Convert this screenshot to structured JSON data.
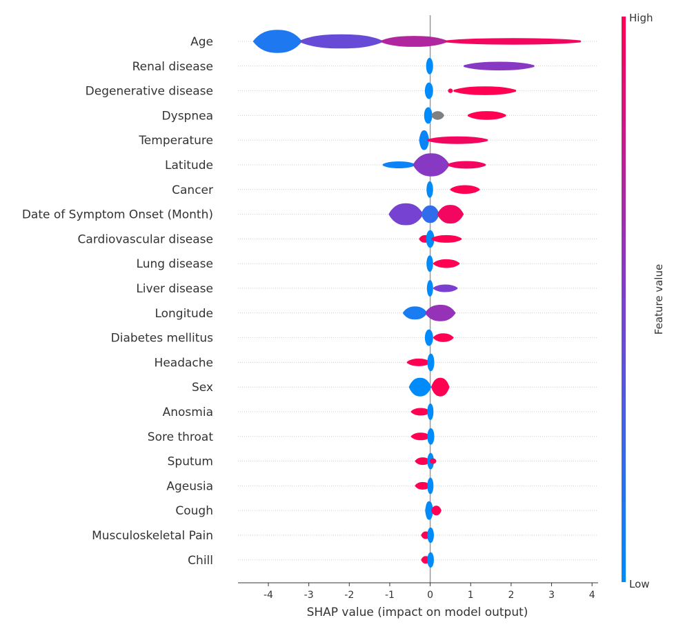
{
  "chart_data": {
    "type": "scatter",
    "subtype": "shap_beeswarm_summary",
    "title": "",
    "xlabel": "SHAP value (impact on model output)",
    "ylabel": "",
    "xlim": [
      -4.75,
      4.15
    ],
    "xticks": [
      -4,
      -3,
      -2,
      -1,
      0,
      1,
      2,
      3,
      4
    ],
    "xtick_labels": [
      "-4",
      "-3",
      "-2",
      "-1",
      "0",
      "1",
      "2",
      "3",
      "4"
    ],
    "zero_line": true,
    "colorbar": {
      "label": "Feature value",
      "high_label": "High",
      "low_label": "Low",
      "low_color": "#008bfb",
      "mid_color": "#7b3fd0",
      "high_color": "#ff0052"
    },
    "missing_value_color": "#808080",
    "features": [
      {
        "name": "Age",
        "segments": [
          {
            "from": -4.35,
            "to": -3.2,
            "h": 0.95,
            "color": 0.12
          },
          {
            "from": -3.2,
            "to": -1.2,
            "h": 0.55,
            "color": 0.42
          },
          {
            "from": -1.2,
            "to": 0.4,
            "h": 0.4,
            "color": 0.7
          },
          {
            "from": 0.4,
            "to": 3.7,
            "h": 0.2,
            "color": 0.95
          }
        ]
      },
      {
        "name": "Renal disease",
        "segments": [
          {
            "from": -0.05,
            "to": 0.02,
            "h": 0.75,
            "color": 0.0
          },
          {
            "from": 0.85,
            "to": 2.55,
            "h": 0.3,
            "color": 0.55
          }
        ]
      },
      {
        "name": "Degenerative disease",
        "segments": [
          {
            "from": -0.08,
            "to": 0.02,
            "h": 0.75,
            "color": 0.0
          },
          {
            "from": 0.5,
            "to": 0.5,
            "h": 0.2,
            "color": 1.0
          },
          {
            "from": 0.6,
            "to": 2.1,
            "h": 0.3,
            "color": 1.0
          }
        ]
      },
      {
        "name": "Dyspnea",
        "segments": [
          {
            "from": -0.1,
            "to": 0.0,
            "h": 0.75,
            "color": 0.0
          },
          {
            "from": 0.05,
            "to": 0.32,
            "h": 0.3,
            "color": "nan"
          },
          {
            "from": 0.95,
            "to": 1.85,
            "h": 0.3,
            "color": 1.0
          }
        ]
      },
      {
        "name": "Temperature",
        "segments": [
          {
            "from": -0.25,
            "to": -0.05,
            "h": 0.8,
            "color": 0.05
          },
          {
            "from": -0.05,
            "to": 1.4,
            "h": 0.25,
            "color": 0.95
          }
        ]
      },
      {
        "name": "Latitude",
        "segments": [
          {
            "from": -1.15,
            "to": -0.4,
            "h": 0.22,
            "color": 0.05
          },
          {
            "from": -0.4,
            "to": 0.45,
            "h": 0.95,
            "color": 0.55
          },
          {
            "from": 0.45,
            "to": 1.35,
            "h": 0.25,
            "color": 0.95
          }
        ]
      },
      {
        "name": "Cancer",
        "segments": [
          {
            "from": -0.04,
            "to": 0.02,
            "h": 0.75,
            "color": 0.0
          },
          {
            "from": 0.52,
            "to": 1.2,
            "h": 0.3,
            "color": 1.0
          }
        ]
      },
      {
        "name": "Date of Symptom Onset (Month)",
        "segments": [
          {
            "from": -1.0,
            "to": -0.2,
            "h": 0.9,
            "color": 0.48
          },
          {
            "from": -0.2,
            "to": 0.2,
            "h": 0.7,
            "color": 0.2
          },
          {
            "from": 0.2,
            "to": 0.8,
            "h": 0.75,
            "color": 0.95
          }
        ]
      },
      {
        "name": "Cardiovascular disease",
        "segments": [
          {
            "from": -0.25,
            "to": 0.0,
            "h": 0.25,
            "color": 1.0
          },
          {
            "from": -0.05,
            "to": 0.05,
            "h": 0.8,
            "color": 0.0
          },
          {
            "from": 0.05,
            "to": 0.75,
            "h": 0.25,
            "color": 1.0
          }
        ]
      },
      {
        "name": "Lung disease",
        "segments": [
          {
            "from": -0.04,
            "to": 0.02,
            "h": 0.75,
            "color": 0.0
          },
          {
            "from": 0.1,
            "to": 0.7,
            "h": 0.3,
            "color": 1.0
          }
        ]
      },
      {
        "name": "Liver disease",
        "segments": [
          {
            "from": -0.03,
            "to": 0.02,
            "h": 0.75,
            "color": 0.0
          },
          {
            "from": 0.1,
            "to": 0.65,
            "h": 0.25,
            "color": 0.5
          }
        ]
      },
      {
        "name": "Longitude",
        "segments": [
          {
            "from": -0.65,
            "to": -0.1,
            "h": 0.5,
            "color": 0.1
          },
          {
            "from": -0.1,
            "to": 0.6,
            "h": 0.65,
            "color": 0.6
          }
        ]
      },
      {
        "name": "Diabetes mellitus",
        "segments": [
          {
            "from": -0.08,
            "to": 0.02,
            "h": 0.75,
            "color": 0.0
          },
          {
            "from": 0.1,
            "to": 0.55,
            "h": 0.3,
            "color": 1.0
          }
        ]
      },
      {
        "name": "Headache",
        "segments": [
          {
            "from": -0.55,
            "to": -0.02,
            "h": 0.25,
            "color": 1.0
          },
          {
            "from": -0.02,
            "to": 0.05,
            "h": 0.8,
            "color": 0.0
          }
        ]
      },
      {
        "name": "Sex",
        "segments": [
          {
            "from": -0.5,
            "to": 0.0,
            "h": 0.75,
            "color": 0.0
          },
          {
            "from": 0.05,
            "to": 0.45,
            "h": 0.75,
            "color": 1.0
          }
        ]
      },
      {
        "name": "Anosmia",
        "segments": [
          {
            "from": -0.45,
            "to": -0.02,
            "h": 0.25,
            "color": 1.0
          },
          {
            "from": -0.02,
            "to": 0.03,
            "h": 0.75,
            "color": 0.0
          }
        ]
      },
      {
        "name": "Sore throat",
        "segments": [
          {
            "from": -0.45,
            "to": -0.02,
            "h": 0.25,
            "color": 1.0
          },
          {
            "from": -0.02,
            "to": 0.05,
            "h": 0.75,
            "color": 0.0
          }
        ]
      },
      {
        "name": "Sputum",
        "segments": [
          {
            "from": -0.35,
            "to": -0.02,
            "h": 0.25,
            "color": 1.0
          },
          {
            "from": -0.02,
            "to": 0.04,
            "h": 0.75,
            "color": 0.0
          },
          {
            "from": 0.04,
            "to": 0.1,
            "h": 0.25,
            "color": 1.0
          }
        ]
      },
      {
        "name": "Ageusia",
        "segments": [
          {
            "from": -0.35,
            "to": -0.02,
            "h": 0.25,
            "color": 1.0
          },
          {
            "from": -0.02,
            "to": 0.03,
            "h": 0.75,
            "color": 0.0
          }
        ]
      },
      {
        "name": "Cough",
        "segments": [
          {
            "from": -0.1,
            "to": 0.05,
            "h": 0.75,
            "color": 0.0
          },
          {
            "from": 0.05,
            "to": 0.25,
            "h": 0.35,
            "color": 1.0
          }
        ]
      },
      {
        "name": "Musculoskeletal Pain",
        "segments": [
          {
            "from": -0.2,
            "to": -0.02,
            "h": 0.25,
            "color": 1.0
          },
          {
            "from": -0.02,
            "to": 0.04,
            "h": 0.7,
            "color": 0.0
          }
        ]
      },
      {
        "name": "Chill",
        "segments": [
          {
            "from": -0.2,
            "to": -0.02,
            "h": 0.25,
            "color": 1.0
          },
          {
            "from": -0.02,
            "to": 0.04,
            "h": 0.7,
            "color": 0.0
          }
        ]
      }
    ]
  }
}
